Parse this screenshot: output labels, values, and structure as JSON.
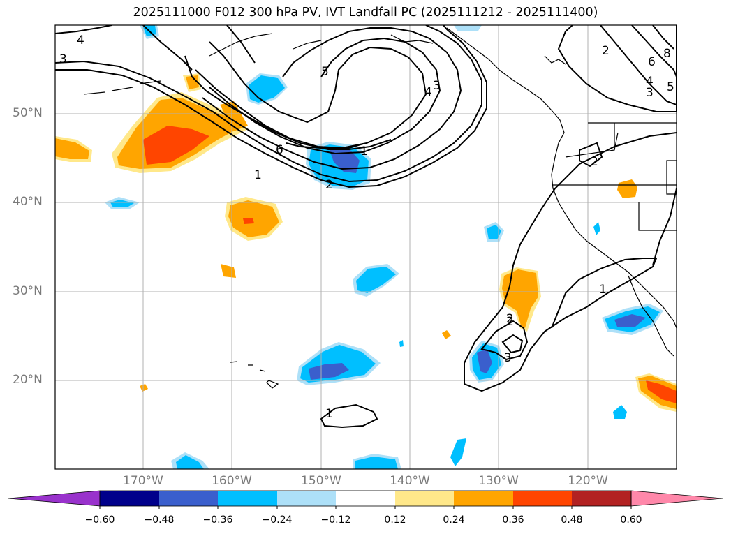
{
  "title": "2025111000 F012 300 hPa PV, IVT Landfall PC (2025111212 - 2025111400)",
  "lat_labels": [
    "50°N",
    "40°N",
    "30°N",
    "20°N"
  ],
  "lon_labels": [
    "170°W",
    "160°W",
    "150°W",
    "140°W",
    "130°W",
    "120°W"
  ],
  "contour_labels": [
    "4",
    "3",
    "5",
    "3",
    "4",
    "6",
    "1",
    "2",
    "1",
    "2",
    "2",
    "6",
    "8",
    "4",
    "5",
    "3",
    "2",
    "1",
    "2",
    "3",
    "1"
  ],
  "colorbar": {
    "ticks": [
      "−0.60",
      "−0.48",
      "−0.36",
      "−0.24",
      "−0.12",
      "0.12",
      "0.24",
      "0.36",
      "0.48",
      "0.60"
    ],
    "colors": [
      "#9932CC",
      "#00008B",
      "#3A5FCD",
      "#00BFFF",
      "#ADE0F8",
      "#FFFFFF",
      "#FFE88A",
      "#FFA500",
      "#FF4500",
      "#B22222",
      "#FF88AA"
    ]
  },
  "colors": {
    "contour": "#000000",
    "grid": "#b0b0b0",
    "label": "#7a7a7a"
  }
}
